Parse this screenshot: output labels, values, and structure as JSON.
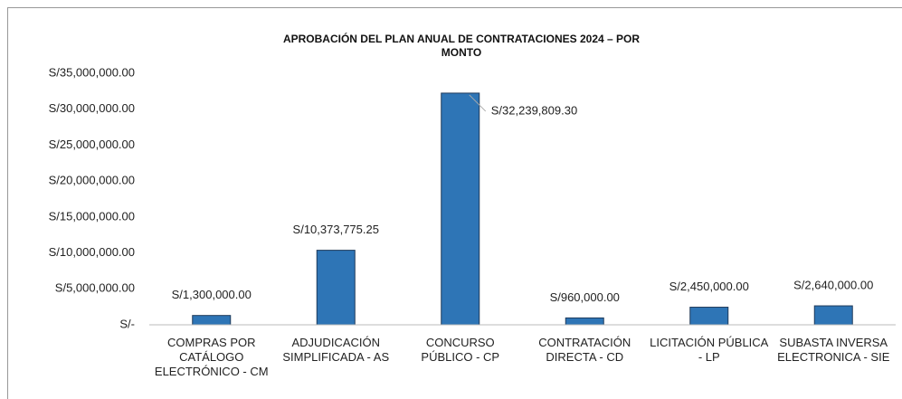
{
  "chart_data": {
    "type": "bar",
    "title": "APROBACIÓN DEL PLAN ANUAL DE CONTRATACIONES 2024 – POR MONTO",
    "categories": [
      "COMPRAS POR CATÁLOGO ELECTRÓNICO - CM",
      "ADJUDICACIÓN SIMPLIFICADA - AS",
      "CONCURSO PÚBLICO - CP",
      "CONTRATACIÓN DIRECTA - CD",
      "LICITACIÓN PÚBLICA - LP",
      "SUBASTA INVERSA ELECTRONICA - SIE"
    ],
    "values": [
      1300000,
      10373775.25,
      32239809.3,
      960000,
      2450000,
      2640000
    ],
    "value_labels": [
      "S/1,300,000.00",
      "S/10,373,775.25",
      "S/32,239,809.30",
      "S/960,000.00",
      "S/2,450,000.00",
      "S/2,640,000.00"
    ],
    "color": "#2e75b6",
    "ylim": [
      0,
      35000000
    ],
    "yticks": [
      {
        "value": 0,
        "label": "S/-"
      },
      {
        "value": 5000000,
        "label": "S/5,000,000.00"
      },
      {
        "value": 10000000,
        "label": "S/10,000,000.00"
      },
      {
        "value": 15000000,
        "label": "S/15,000,000.00"
      },
      {
        "value": 20000000,
        "label": "S/20,000,000.00"
      },
      {
        "value": 25000000,
        "label": "S/25,000,000.00"
      },
      {
        "value": 30000000,
        "label": "S/30,000,000.00"
      },
      {
        "value": 35000000,
        "label": "S/35,000,000.00"
      }
    ],
    "grid": false
  }
}
